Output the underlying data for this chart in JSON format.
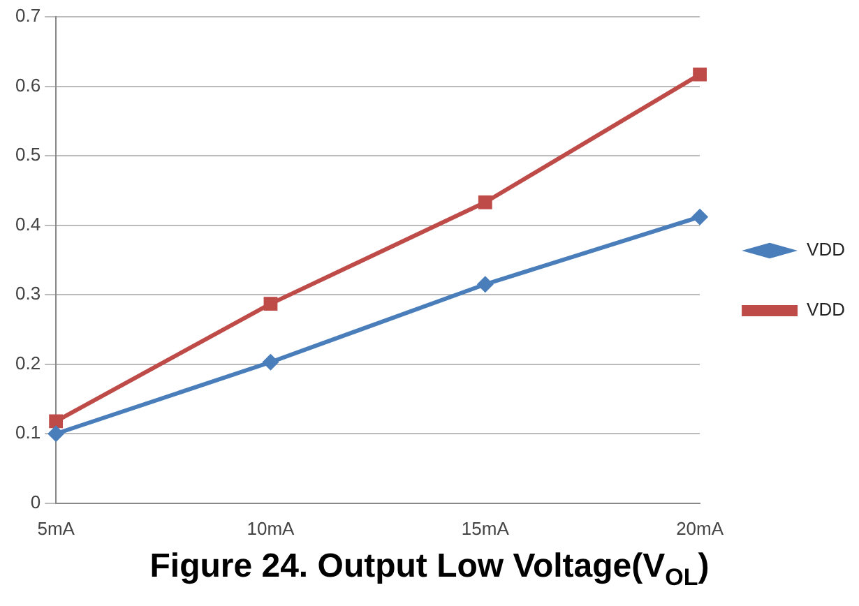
{
  "chart_data": {
    "type": "line",
    "title": "Figure 24. Output Low Voltage(V$_{OL}$)",
    "categories": [
      "5mA",
      "10mA",
      "15mA",
      "20mA"
    ],
    "series": [
      {
        "name": "VDD",
        "color": "#4a7ebb",
        "values": [
          0.1,
          0.203,
          0.315,
          0.412
        ],
        "marker": "diamond"
      },
      {
        "name": "VDD",
        "color": "#be4b48",
        "values": [
          0.118,
          0.287,
          0.433,
          0.617
        ],
        "marker": "square"
      }
    ],
    "ylim": [
      0,
      0.7
    ],
    "yticks": [
      0,
      0.1,
      0.2,
      0.3,
      0.4,
      0.5,
      0.6,
      0.7
    ],
    "grid": "y",
    "legend": "right",
    "line_style": "solid"
  }
}
